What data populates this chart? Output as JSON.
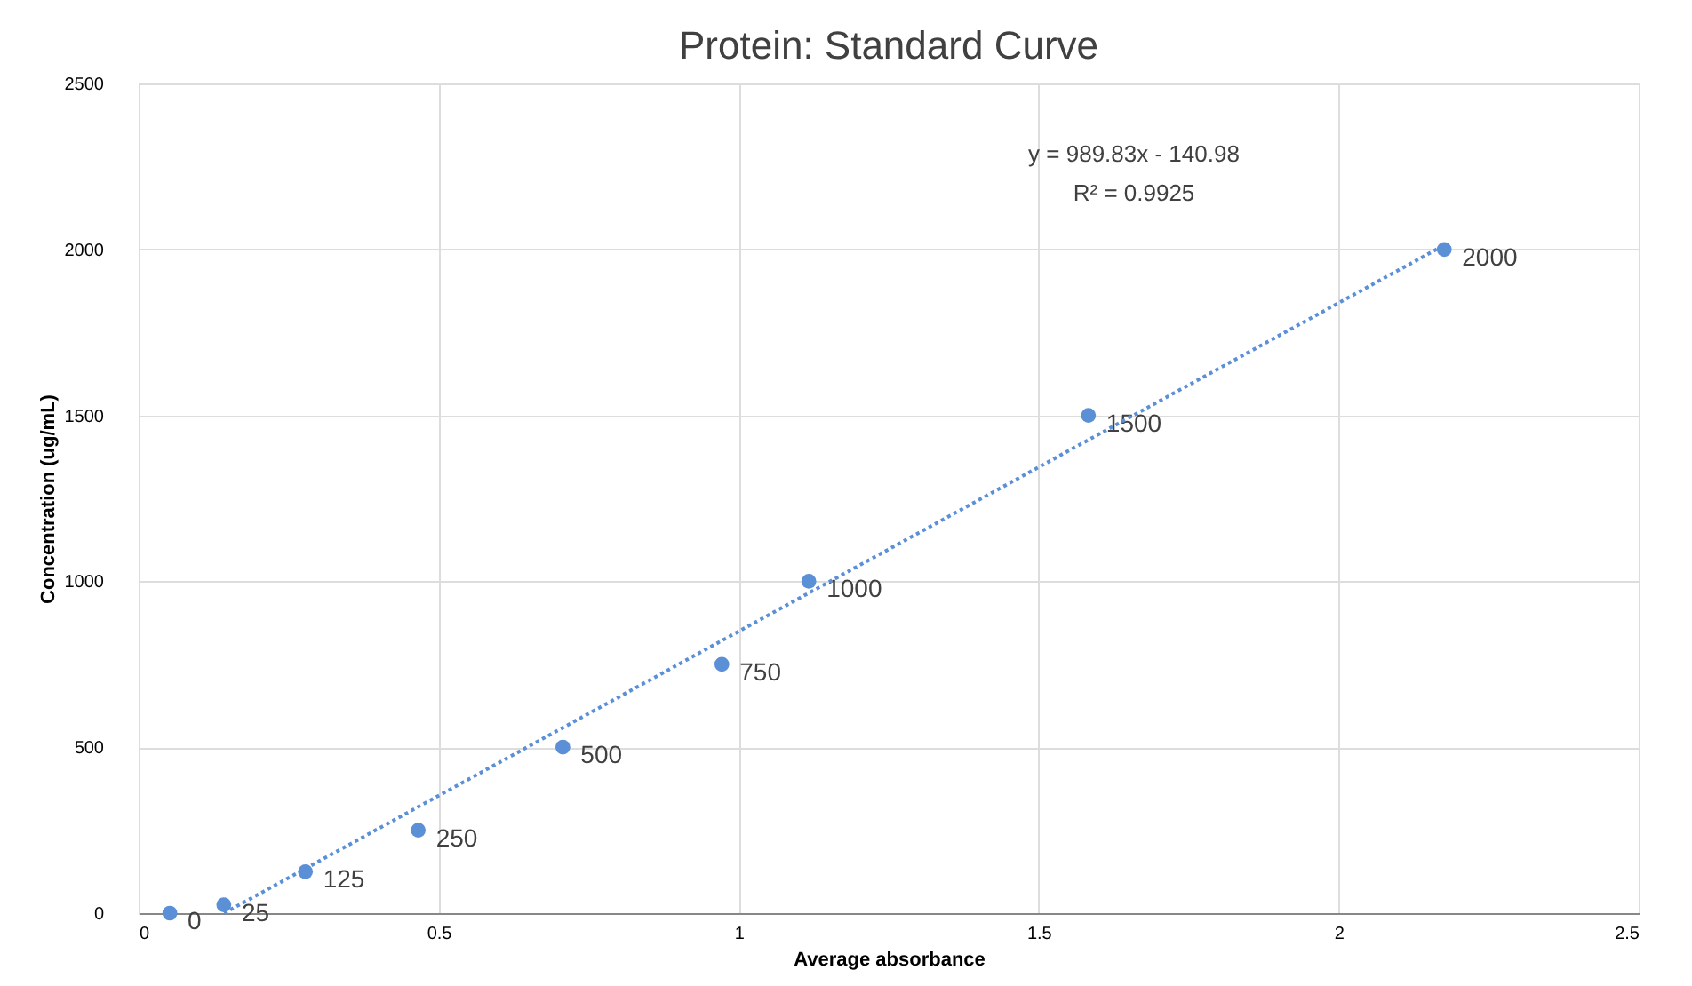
{
  "chart_data": {
    "type": "scatter",
    "title": "Protein: Standard Curve",
    "xlabel": "Average absorbance",
    "ylabel": "Concentration (ug/mL)",
    "series": [
      {
        "color": "#5b8fd6",
        "x": [
          0.052,
          0.142,
          0.278,
          0.466,
          0.707,
          0.972,
          1.117,
          1.583,
          2.176
        ],
        "values": [
          0,
          25,
          125,
          250,
          500,
          750,
          1000,
          1500,
          2000
        ],
        "value_labels": [
          "0",
          "25",
          "125",
          "250",
          "500",
          "750",
          "1000",
          "1500",
          "2000"
        ]
      },
      {
        "type": "line",
        "color": "#5b8fd6",
        "line_style": "dotted",
        "marker": "none",
        "x": [
          0.1424,
          2.176
        ],
        "values": [
          0,
          2013
        ]
      }
    ],
    "marker": "circle",
    "annotations": [
      "y = 989.83x - 140.98",
      "R² = 0.9925"
    ],
    "xlim": [
      0,
      2.5
    ],
    "xticks": [
      0,
      0.5,
      1,
      1.5,
      2,
      2.5
    ],
    "ylim": [
      0,
      2500
    ],
    "yticks": [
      0,
      500,
      1000,
      1500,
      2000,
      2500
    ],
    "grid": true
  }
}
